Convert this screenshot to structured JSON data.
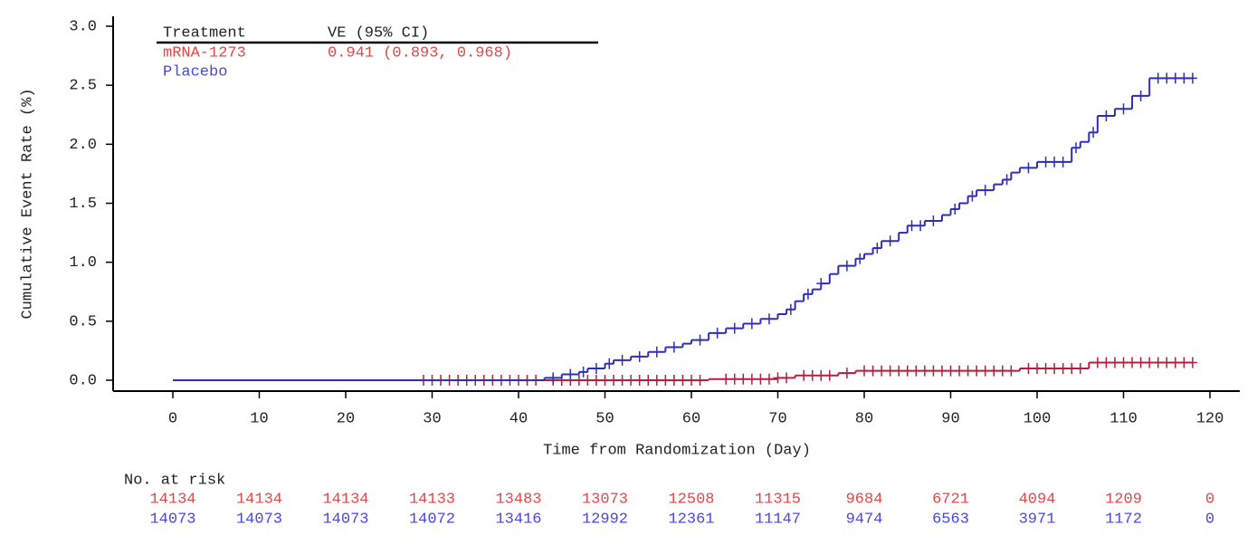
{
  "chart_data": {
    "type": "km",
    "y_label": "Cumulative Event Rate (%)",
    "x_label": "Time from Randomization (Day)",
    "xlim": [
      -7,
      123
    ],
    "ylim": [
      0,
      3.0
    ],
    "xticks": [
      0,
      10,
      20,
      30,
      40,
      50,
      60,
      70,
      80,
      90,
      100,
      110,
      120
    ],
    "yticks": [
      {
        "value": 0,
        "label": "0.0"
      },
      0.5,
      {
        "value": 1,
        "label": "1.0"
      },
      1.5,
      {
        "value": 2,
        "label": "2.0"
      },
      2.5,
      {
        "value": 3,
        "label": "3.0"
      }
    ],
    "legend": {
      "headers": [
        "Treatment",
        "VE (95% CI)"
      ],
      "ve": "0.941 (0.893, 0.968)"
    },
    "series": [
      {
        "name": "mRNA-1273",
        "color": "#b3203f",
        "text_color": "#e04848",
        "x": [
          0,
          62,
          70,
          72,
          77,
          79,
          98,
          106,
          118
        ],
        "values": [
          0,
          0.01,
          0.02,
          0.04,
          0.06,
          0.08,
          0.1,
          0.15,
          0.15
        ],
        "censor_x": [
          29,
          30,
          31,
          32,
          33,
          34,
          35,
          36,
          37,
          38,
          39,
          40,
          41,
          42,
          44,
          45,
          46,
          47,
          48,
          49,
          50,
          51,
          52,
          53,
          54,
          55,
          56,
          57,
          58,
          59,
          60,
          61,
          64,
          65,
          66,
          67,
          68,
          69,
          70,
          71,
          73,
          74,
          75,
          76,
          78,
          80,
          81,
          82,
          83,
          84,
          85,
          86,
          87,
          88,
          89,
          90,
          91,
          92,
          93,
          94,
          95,
          96,
          97,
          99,
          100,
          101,
          102,
          103,
          104,
          105,
          107,
          108,
          109,
          110,
          111,
          112,
          113,
          114,
          115,
          116,
          117,
          118
        ],
        "at_risk": [
          14134,
          14134,
          14134,
          14133,
          13483,
          13073,
          12508,
          11315,
          9684,
          6721,
          4094,
          1209,
          0
        ]
      },
      {
        "name": "Placebo",
        "color": "#2f2fb5",
        "text_color": "#4848e0",
        "x": [
          0,
          43,
          45,
          47,
          48,
          50,
          51,
          53,
          55,
          57,
          59,
          60,
          62,
          64,
          66,
          68,
          70,
          71,
          72,
          73,
          74,
          75,
          76,
          77,
          79,
          80,
          81,
          82,
          84,
          85,
          87,
          89,
          90,
          91,
          92,
          93,
          95,
          96,
          97,
          98,
          100,
          104,
          105,
          106,
          107,
          109,
          111,
          113,
          118
        ],
        "values": [
          0,
          0.02,
          0.05,
          0.07,
          0.1,
          0.14,
          0.17,
          0.2,
          0.24,
          0.28,
          0.31,
          0.34,
          0.4,
          0.44,
          0.48,
          0.52,
          0.56,
          0.6,
          0.67,
          0.73,
          0.77,
          0.82,
          0.9,
          0.97,
          1.03,
          1.07,
          1.12,
          1.18,
          1.25,
          1.31,
          1.35,
          1.4,
          1.45,
          1.5,
          1.56,
          1.61,
          1.66,
          1.7,
          1.76,
          1.8,
          1.85,
          1.97,
          2.02,
          2.1,
          2.24,
          2.3,
          2.41,
          2.56,
          2.56
        ],
        "censor_x": [
          44,
          46,
          47.5,
          49,
          50.5,
          52,
          54,
          56,
          58,
          61,
          63,
          65,
          67,
          69,
          71.5,
          73.5,
          75,
          78,
          79.5,
          81.5,
          83,
          85.5,
          86.5,
          88,
          90.5,
          92.5,
          94,
          96.5,
          99,
          101,
          102,
          103,
          104.5,
          106.5,
          108,
          110,
          112,
          114,
          115,
          116,
          117,
          118
        ],
        "at_risk": [
          14073,
          14073,
          14073,
          14072,
          13416,
          12992,
          12361,
          11147,
          9474,
          6563,
          3971,
          1172,
          0
        ]
      }
    ],
    "at_risk_title": "No. at risk"
  }
}
